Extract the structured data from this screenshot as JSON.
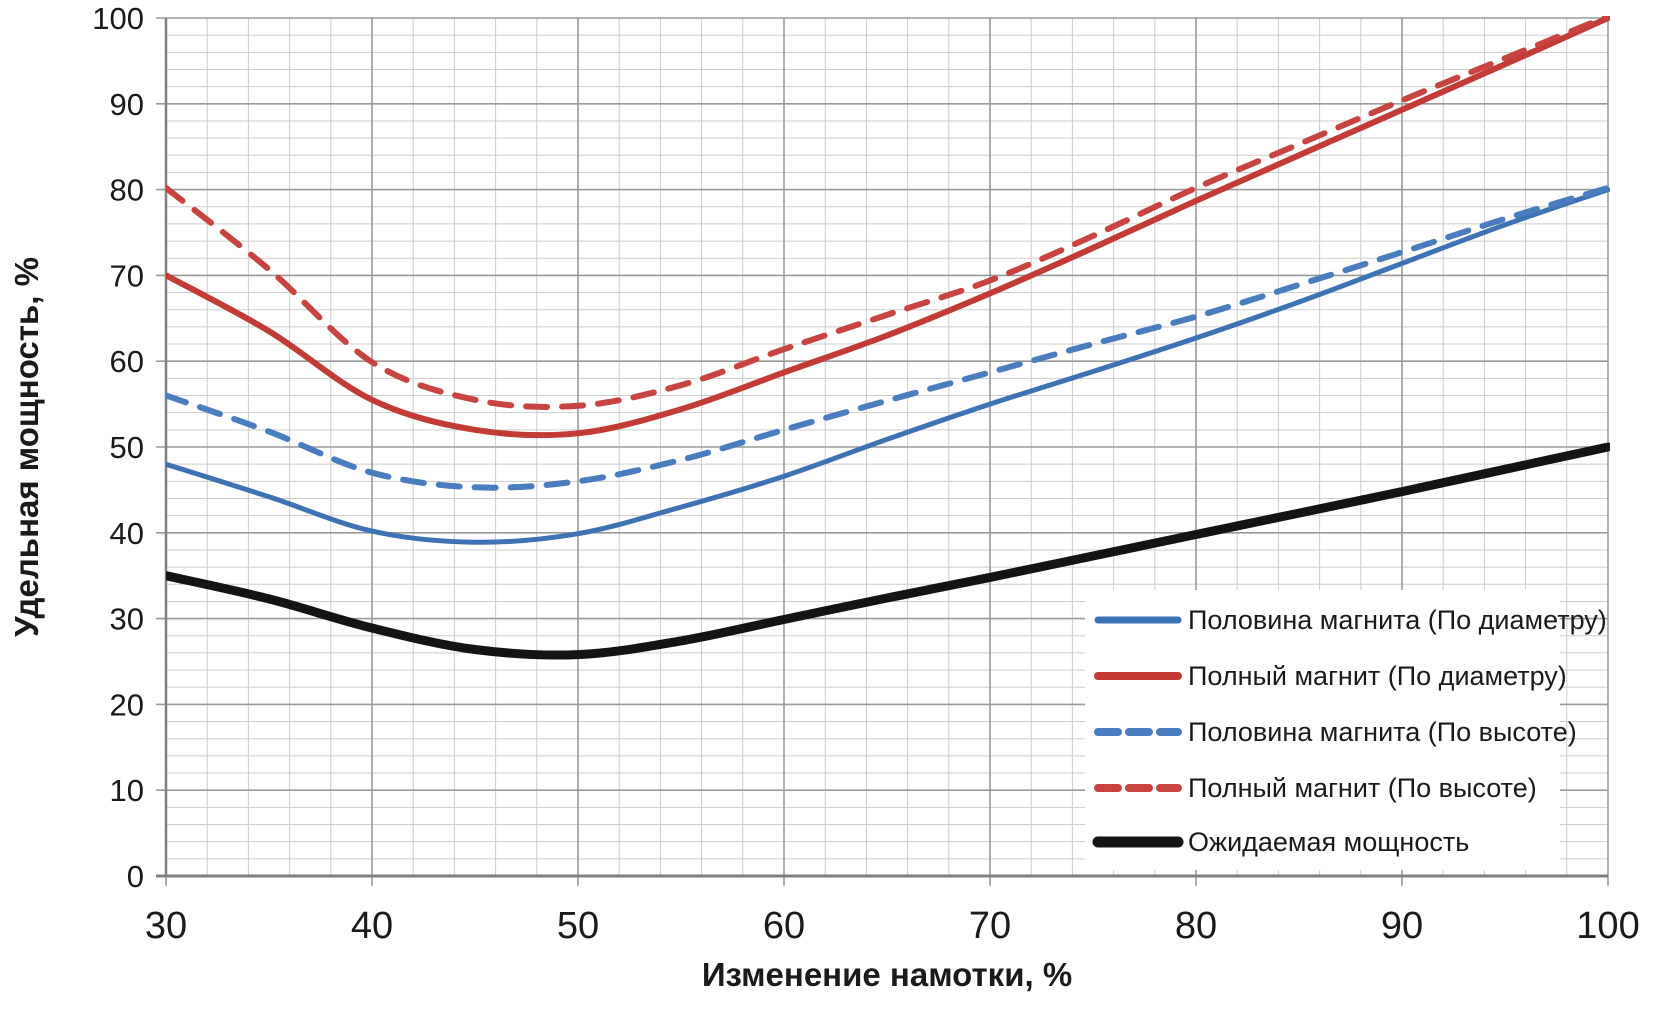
{
  "chart_data": {
    "type": "line",
    "title": "",
    "xlabel": "Изменение намотки, %",
    "ylabel": "Удельная мощность, %",
    "xlim": [
      30,
      100
    ],
    "ylim": [
      0,
      100
    ],
    "x_major_ticks": [
      30,
      40,
      50,
      60,
      70,
      80,
      90,
      100
    ],
    "y_major_ticks": [
      0,
      10,
      20,
      30,
      40,
      50,
      60,
      70,
      80,
      90,
      100
    ],
    "x_minor_step": 2,
    "y_minor_step": 2,
    "grid": {
      "major": true,
      "minor": true
    },
    "legend_position": "inside-bottom-right",
    "x": [
      30,
      35,
      40,
      45,
      50,
      55,
      60,
      65,
      70,
      75,
      80,
      85,
      90,
      95,
      100
    ],
    "series": [
      {
        "name": "Половина магнита (По диаметру)",
        "color": "#3d72b4",
        "style": "solid",
        "width": 5,
        "values": [
          48.0,
          44.2,
          40.2,
          38.9,
          39.9,
          43.0,
          46.6,
          50.9,
          55.0,
          58.8,
          62.7,
          66.9,
          71.4,
          75.9,
          80.0
        ]
      },
      {
        "name": "Полный магнит (По диаметру)",
        "color": "#c23b35",
        "style": "solid",
        "width": 6,
        "values": [
          70.0,
          63.5,
          55.5,
          52.0,
          51.6,
          54.4,
          58.7,
          63.0,
          67.9,
          73.2,
          78.7,
          84.0,
          89.3,
          94.6,
          100.0
        ]
      },
      {
        "name": "Половина магнита (По высоте)",
        "color": "#4a7cc0",
        "style": "dashed",
        "width": 6,
        "values": [
          56.0,
          51.8,
          47.0,
          45.3,
          46.0,
          48.5,
          52.0,
          55.4,
          58.7,
          62.0,
          65.2,
          68.9,
          72.7,
          76.6,
          80.2
        ]
      },
      {
        "name": "Полный магнит (По высоте)",
        "color": "#c84440",
        "style": "dashed",
        "width": 6,
        "values": [
          80.2,
          70.7,
          59.9,
          55.5,
          54.8,
          57.2,
          61.4,
          65.4,
          69.4,
          74.6,
          80.2,
          85.3,
          90.4,
          95.3,
          100.2
        ]
      },
      {
        "name": "Ожидаемая мощность",
        "color": "#141414",
        "style": "solid",
        "width": 9,
        "values": [
          35.0,
          32.3,
          28.9,
          26.4,
          25.8,
          27.4,
          29.9,
          32.4,
          34.8,
          37.3,
          39.8,
          42.3,
          44.8,
          47.4,
          50.0
        ]
      }
    ]
  },
  "style_colors": {
    "minor_grid": "#cdcdcd",
    "major_grid": "#9a9a9a",
    "axis_line": "#7f7f7f",
    "legend_bg": "#ffffff",
    "text": "#1a1a1a"
  }
}
